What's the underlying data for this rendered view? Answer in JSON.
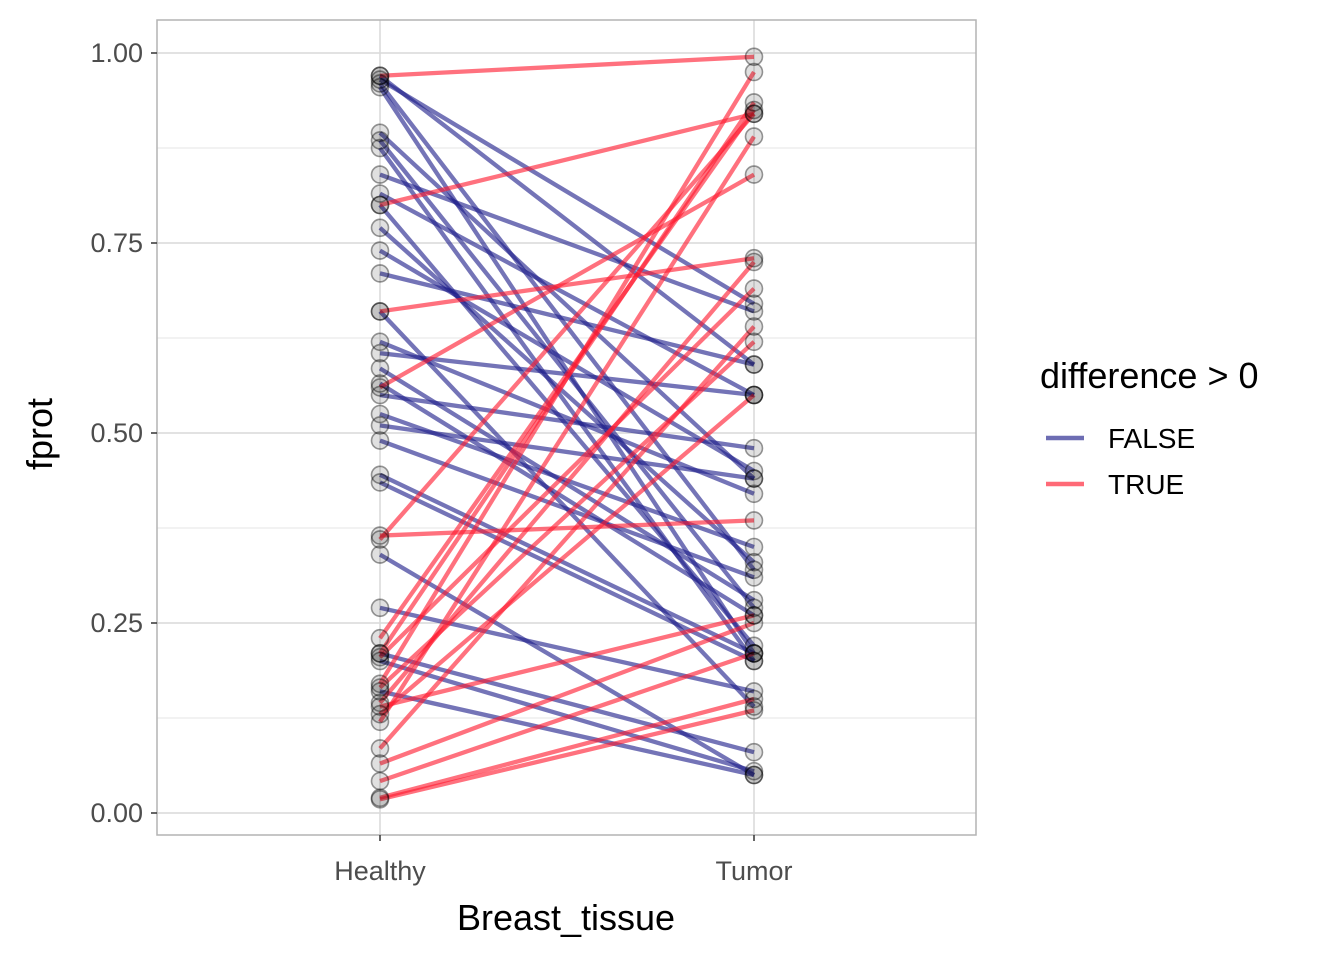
{
  "chart_data": {
    "type": "line",
    "subtype": "paired slope chart",
    "xlabel": "Breast_tissue",
    "ylabel": "fprot",
    "categories": [
      "Healthy",
      "Tumor"
    ],
    "ylim": [
      -0.03,
      1.04
    ],
    "yticks": [
      "0.00",
      "0.25",
      "0.50",
      "0.75",
      "1.00"
    ],
    "grid": true,
    "legend": {
      "title": "difference > 0",
      "placement": "right",
      "entries": [
        {
          "label": "FALSE",
          "color": "#1f1f8a"
        },
        {
          "label": "TRUE",
          "color": "#ff1a2e"
        }
      ]
    },
    "series": [
      {
        "name": "FALSE",
        "color": "#1f1f8a",
        "pairs": [
          {
            "healthy": 0.97,
            "tumor": 0.59
          },
          {
            "healthy": 0.965,
            "tumor": 0.67
          },
          {
            "healthy": 0.96,
            "tumor": 0.32
          },
          {
            "healthy": 0.955,
            "tumor": 0.21
          },
          {
            "healthy": 0.895,
            "tumor": 0.44
          },
          {
            "healthy": 0.885,
            "tumor": 0.27
          },
          {
            "healthy": 0.875,
            "tumor": 0.2
          },
          {
            "healthy": 0.84,
            "tumor": 0.66
          },
          {
            "healthy": 0.815,
            "tumor": 0.55
          },
          {
            "healthy": 0.8,
            "tumor": 0.22
          },
          {
            "healthy": 0.77,
            "tumor": 0.33
          },
          {
            "healthy": 0.74,
            "tumor": 0.45
          },
          {
            "healthy": 0.71,
            "tumor": 0.59
          },
          {
            "healthy": 0.66,
            "tumor": 0.14
          },
          {
            "healthy": 0.62,
            "tumor": 0.42
          },
          {
            "healthy": 0.605,
            "tumor": 0.55
          },
          {
            "healthy": 0.585,
            "tumor": 0.28
          },
          {
            "healthy": 0.565,
            "tumor": 0.26
          },
          {
            "healthy": 0.55,
            "tumor": 0.48
          },
          {
            "healthy": 0.525,
            "tumor": 0.35
          },
          {
            "healthy": 0.51,
            "tumor": 0.44
          },
          {
            "healthy": 0.49,
            "tumor": 0.31
          },
          {
            "healthy": 0.445,
            "tumor": 0.21
          },
          {
            "healthy": 0.435,
            "tumor": 0.2
          },
          {
            "healthy": 0.34,
            "tumor": 0.05
          },
          {
            "healthy": 0.27,
            "tumor": 0.16
          },
          {
            "healthy": 0.21,
            "tumor": 0.08
          },
          {
            "healthy": 0.2,
            "tumor": 0.055
          },
          {
            "healthy": 0.16,
            "tumor": 0.05
          }
        ]
      },
      {
        "name": "TRUE",
        "color": "#ff1a2e",
        "pairs": [
          {
            "healthy": 0.97,
            "tumor": 0.995
          },
          {
            "healthy": 0.8,
            "tumor": 0.92
          },
          {
            "healthy": 0.66,
            "tumor": 0.73
          },
          {
            "healthy": 0.56,
            "tumor": 0.84
          },
          {
            "healthy": 0.36,
            "tumor": 0.92
          },
          {
            "healthy": 0.365,
            "tumor": 0.385
          },
          {
            "healthy": 0.23,
            "tumor": 0.925
          },
          {
            "healthy": 0.21,
            "tumor": 0.935
          },
          {
            "healthy": 0.205,
            "tumor": 0.69
          },
          {
            "healthy": 0.17,
            "tumor": 0.975
          },
          {
            "healthy": 0.165,
            "tumor": 0.62
          },
          {
            "healthy": 0.145,
            "tumor": 0.725
          },
          {
            "healthy": 0.14,
            "tumor": 0.26
          },
          {
            "healthy": 0.13,
            "tumor": 0.55
          },
          {
            "healthy": 0.12,
            "tumor": 0.89
          },
          {
            "healthy": 0.085,
            "tumor": 0.64
          },
          {
            "healthy": 0.065,
            "tumor": 0.25
          },
          {
            "healthy": 0.042,
            "tumor": 0.21
          },
          {
            "healthy": 0.02,
            "tumor": 0.15
          },
          {
            "healthy": 0.018,
            "tumor": 0.135
          }
        ]
      }
    ]
  }
}
